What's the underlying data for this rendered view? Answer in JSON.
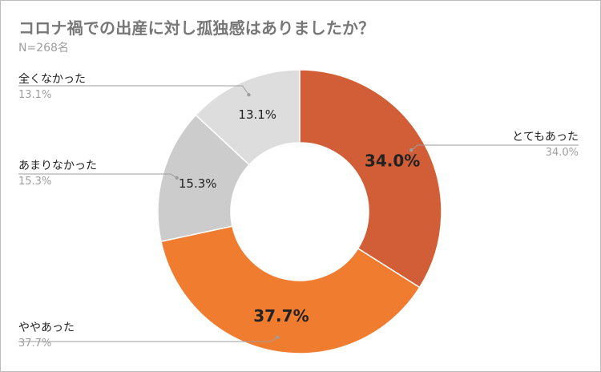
{
  "header": {
    "title": "コロナ禍での出産に対し孤独感はありましたか？",
    "subtitle": "N=268名"
  },
  "chart_data": {
    "type": "pie",
    "donut": true,
    "title": "コロナ禍での出産に対し孤独感はありましたか？",
    "subtitle": "N=268名",
    "categories": [
      "とてもあった",
      "ややあった",
      "あまりなかった",
      "全くなかった"
    ],
    "values": [
      34.0,
      37.7,
      15.3,
      13.1
    ],
    "value_labels": [
      "34.0%",
      "37.7%",
      "15.3%",
      "13.1%"
    ],
    "colors": [
      "#d15e36",
      "#f07c30",
      "#cccccc",
      "#dddddd"
    ],
    "start_angle": "12 o'clock",
    "direction": "clockwise",
    "legend": "callout-labels"
  }
}
